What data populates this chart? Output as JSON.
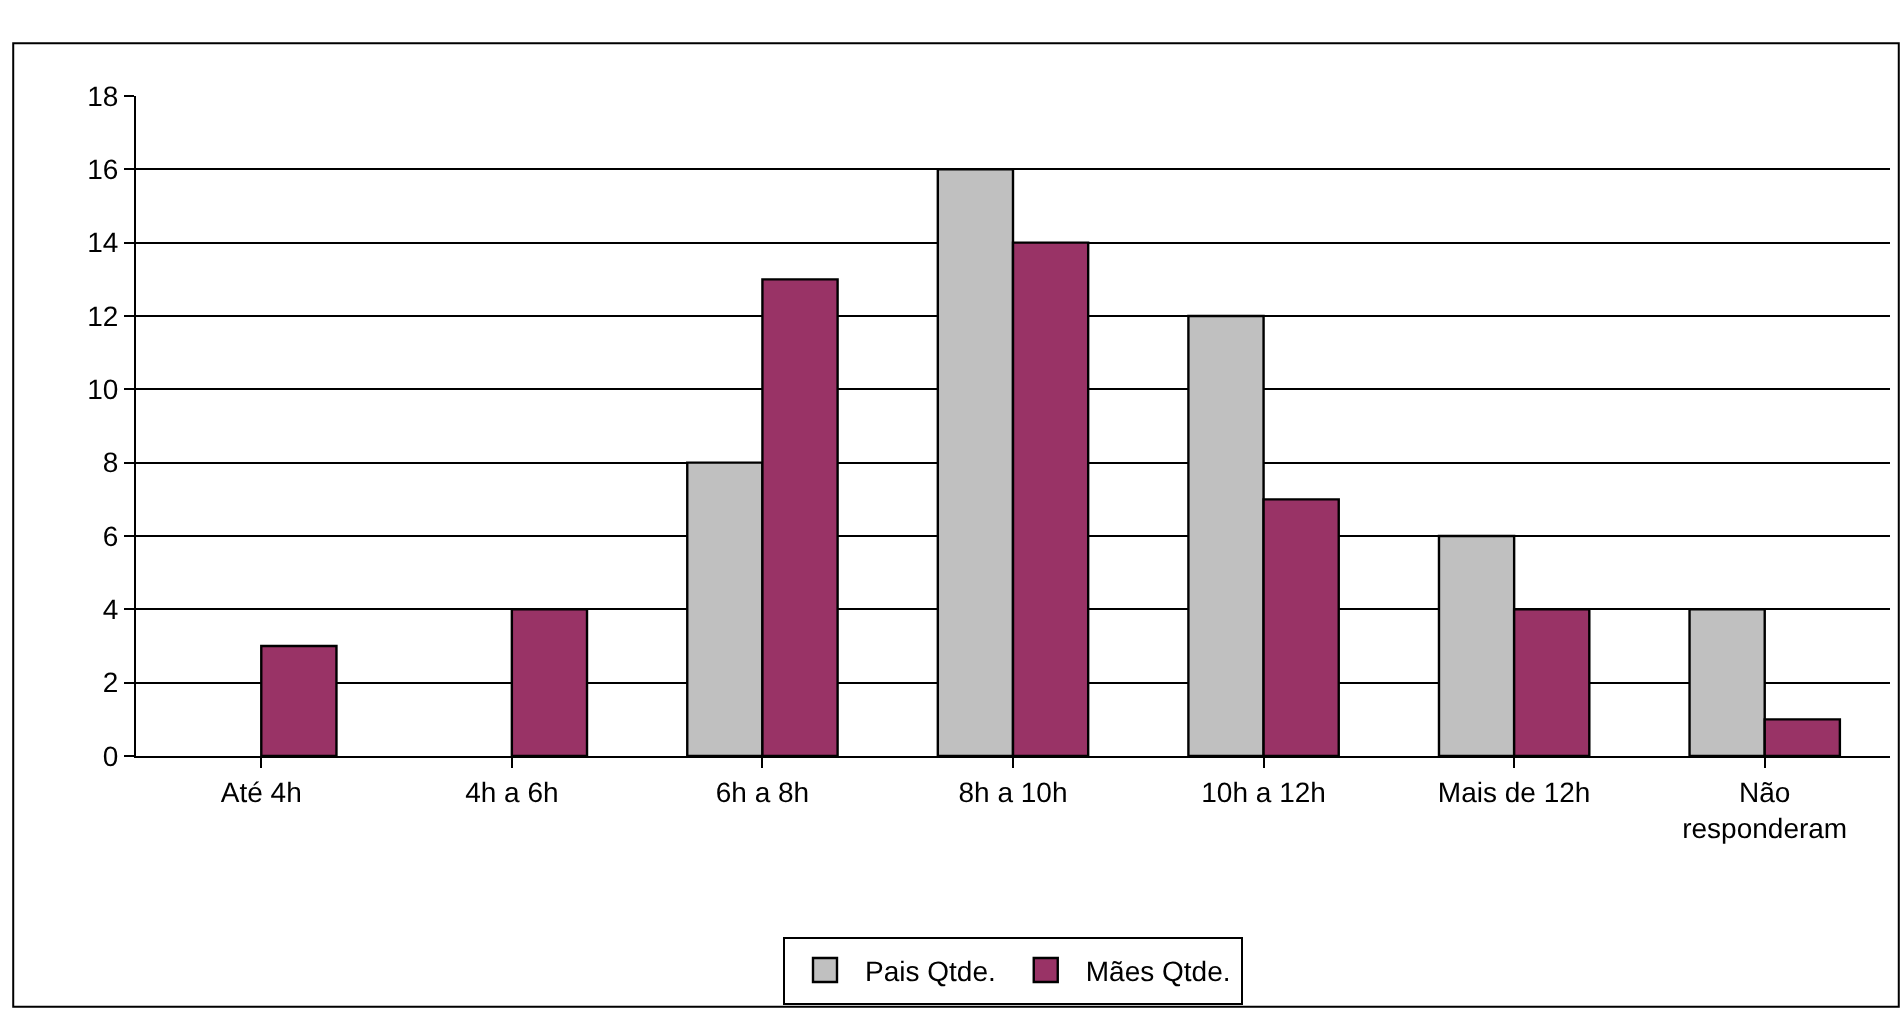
{
  "chart_data": {
    "type": "bar",
    "categories": [
      "Até 4h",
      "4h a 6h",
      "6h a 8h",
      "8h a 10h",
      "10h a 12h",
      "Mais de 12h",
      "Não\nresponderam"
    ],
    "series": [
      {
        "name": "Pais Qtde.",
        "color": "#c0c0c0",
        "values": [
          null,
          null,
          8,
          16,
          12,
          6,
          4
        ]
      },
      {
        "name": "Mães Qtde.",
        "color": "#993366",
        "values": [
          3,
          4,
          13,
          14,
          7,
          4,
          1
        ]
      }
    ],
    "ylim": [
      0,
      18
    ],
    "yticks": [
      0,
      2,
      4,
      6,
      8,
      10,
      12,
      14,
      16,
      18
    ],
    "grid": "y",
    "legend": "bottom"
  }
}
